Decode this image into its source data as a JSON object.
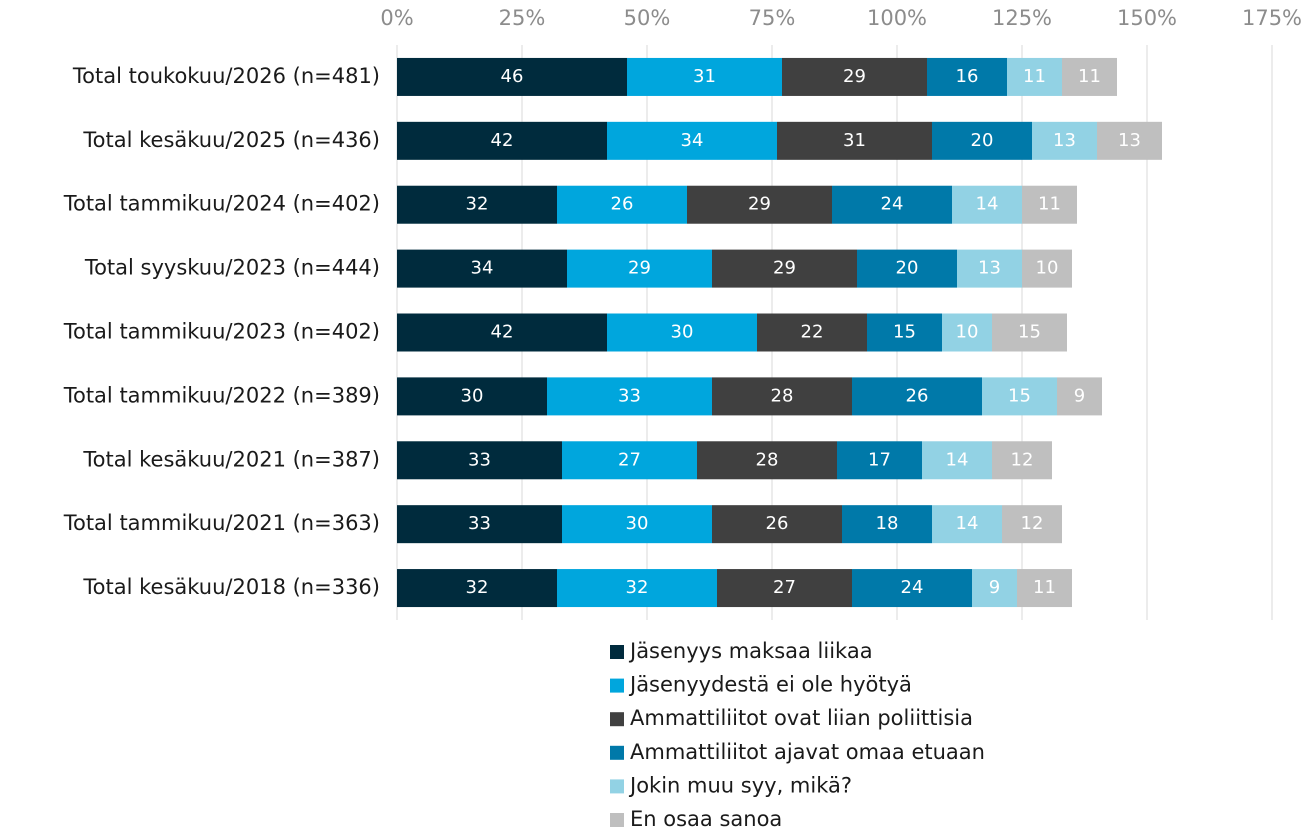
{
  "chart_data": {
    "type": "stacked-bar-horizontal",
    "categories": [
      "Total toukokuu/2026 (n=481)",
      "Total kesäkuu/2025 (n=436)",
      "Total tammikuu/2024 (n=402)",
      "Total syyskuu/2023 (n=444)",
      "Total tammikuu/2023 (n=402)",
      "Total tammikuu/2022 (n=389)",
      "Total kesäkuu/2021 (n=387)",
      "Total tammikuu/2021 (n=363)",
      "Total kesäkuu/2018 (n=336)"
    ],
    "series": [
      {
        "name": "Jäsenyys maksaa liikaa",
        "color": "#002b3d",
        "values": [
          46,
          42,
          32,
          34,
          42,
          30,
          33,
          33,
          32
        ]
      },
      {
        "name": "Jäsenyydestä ei ole hyötyä",
        "color": "#00a6dd",
        "values": [
          31,
          34,
          26,
          29,
          30,
          33,
          27,
          30,
          32
        ]
      },
      {
        "name": "Ammattiliitot ovat liian poliittisia",
        "color": "#404040",
        "values": [
          29,
          31,
          29,
          29,
          22,
          28,
          28,
          26,
          27
        ]
      },
      {
        "name": "Ammattiliitot ajavat omaa etuaan",
        "color": "#0079a9",
        "values": [
          16,
          20,
          24,
          20,
          15,
          26,
          17,
          18,
          24
        ]
      },
      {
        "name": "Jokin muu syy, mikä?",
        "color": "#92d2e4",
        "values": [
          11,
          13,
          14,
          13,
          10,
          15,
          14,
          14,
          9
        ]
      },
      {
        "name": "En osaa sanoa",
        "color": "#bfbfbf",
        "values": [
          11,
          13,
          11,
          10,
          15,
          9,
          12,
          12,
          11
        ]
      }
    ],
    "xlim": [
      0,
      175
    ],
    "xticks": [
      {
        "value": 0,
        "label": "0%"
      },
      {
        "value": 25,
        "label": "25%"
      },
      {
        "value": 50,
        "label": "50%"
      },
      {
        "value": 75,
        "label": "75%"
      },
      {
        "value": 100,
        "label": "100%"
      },
      {
        "value": 125,
        "label": "125%"
      },
      {
        "value": 150,
        "label": "150%"
      },
      {
        "value": 175,
        "label": "175%"
      }
    ],
    "grid": true,
    "legend": "bottom"
  }
}
